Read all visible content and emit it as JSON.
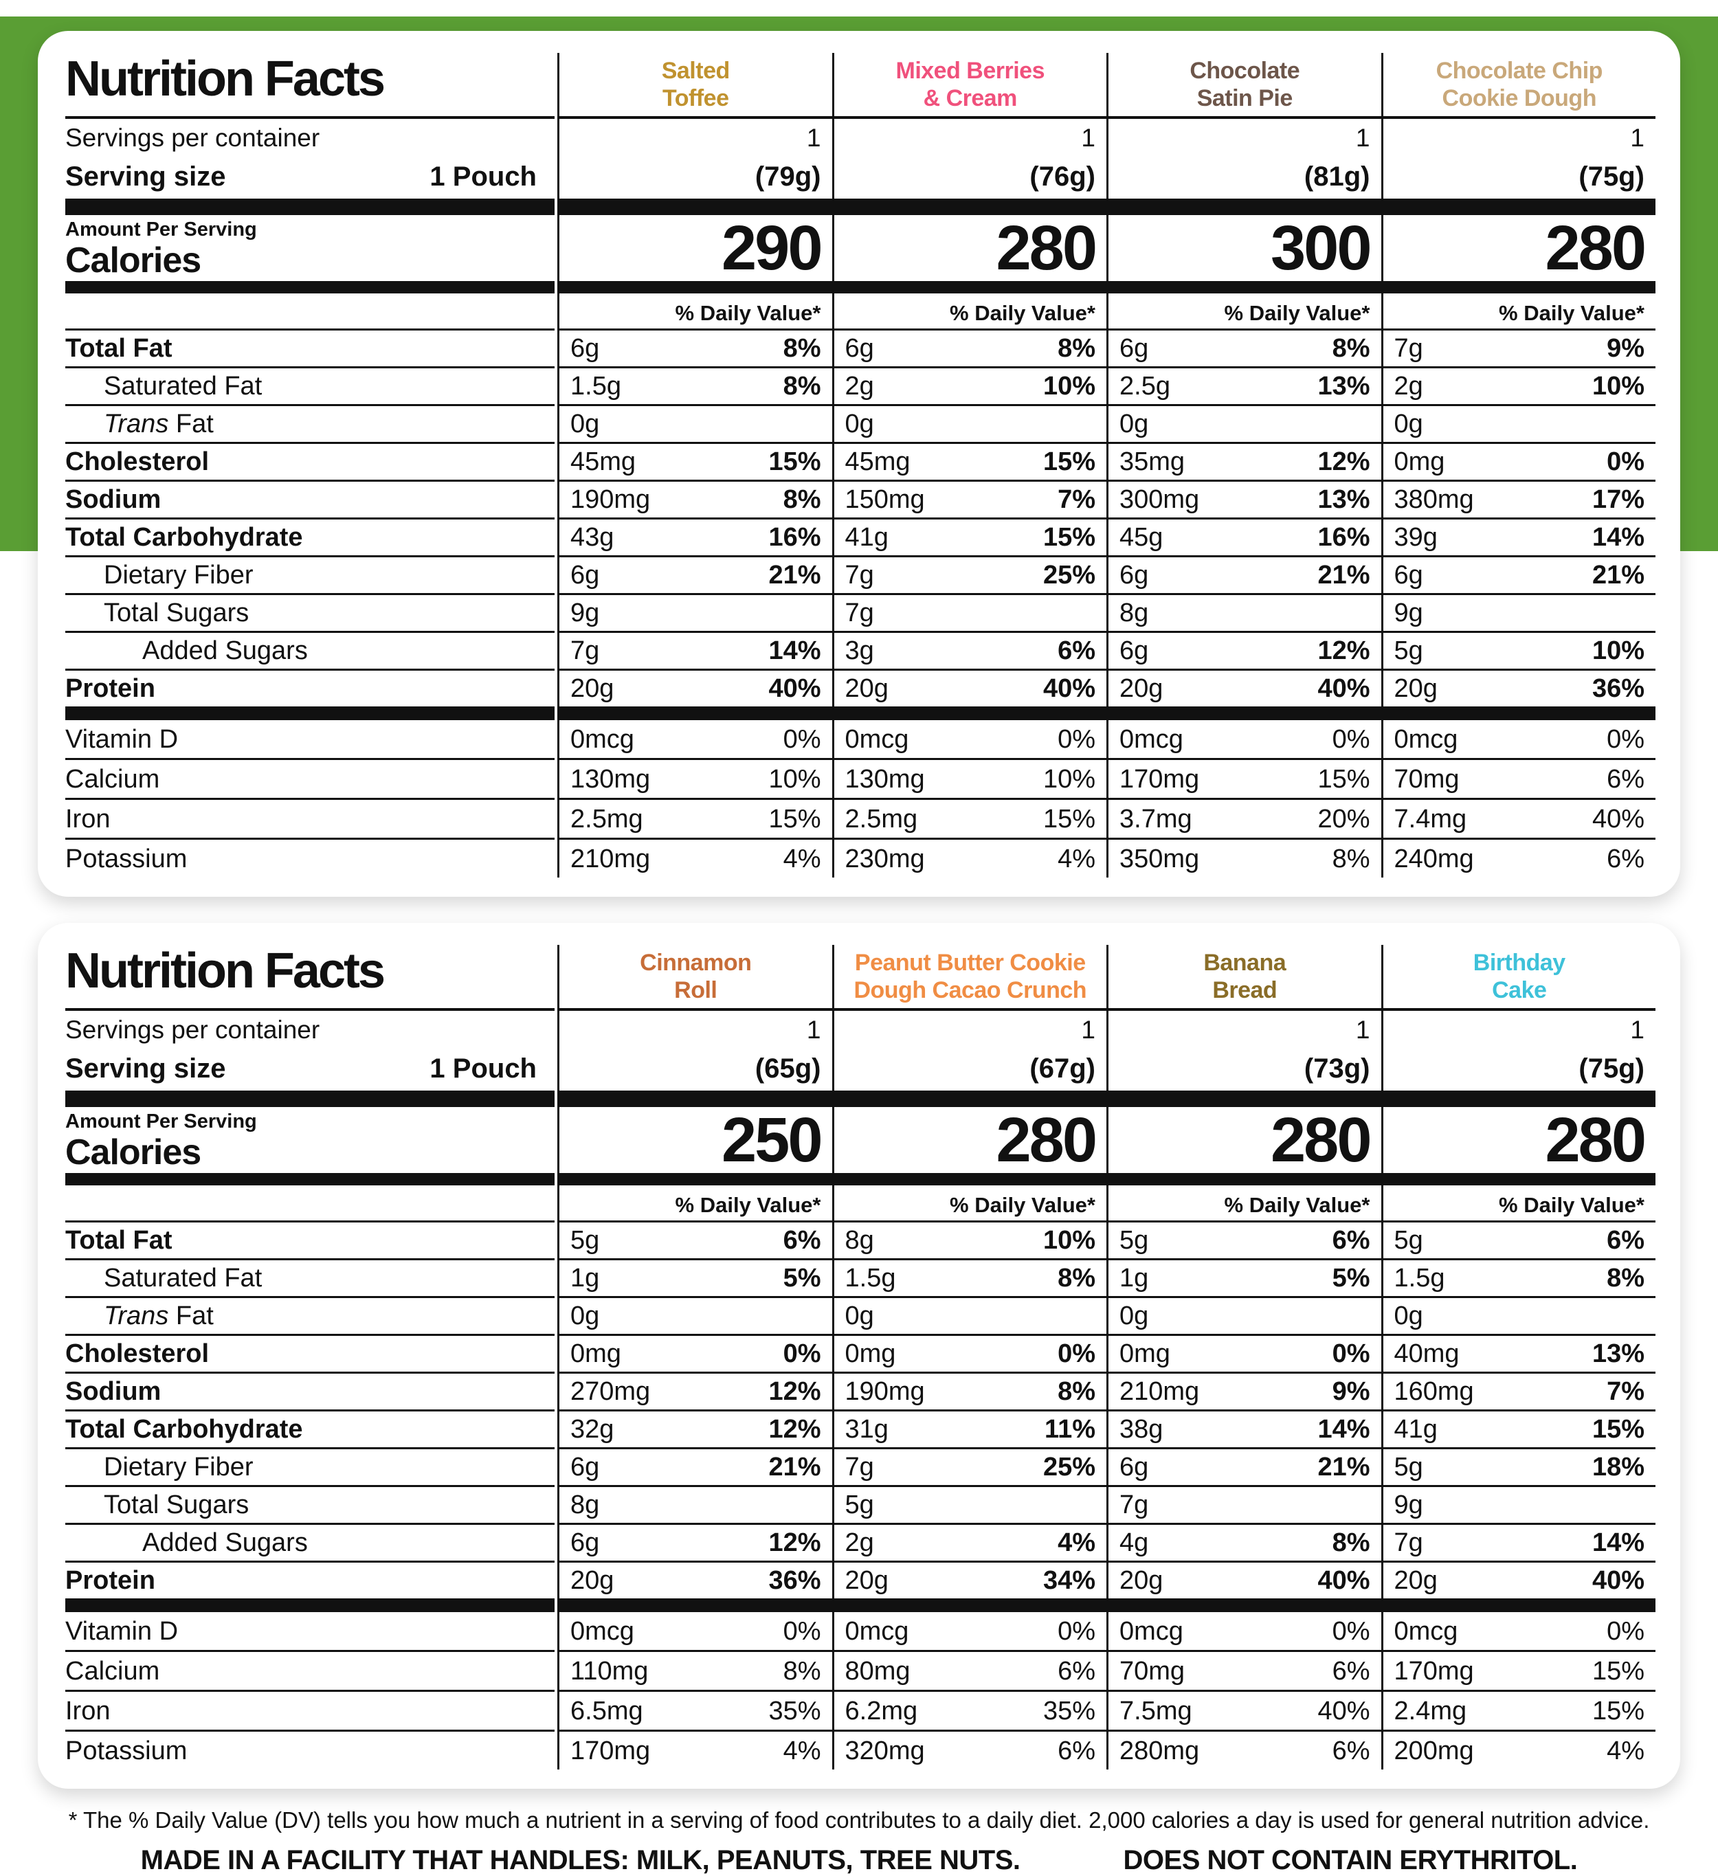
{
  "colors": {
    "background_green": "#5a9e34",
    "ink": "#111111"
  },
  "labels": {
    "title": "Nutrition Facts",
    "servings_per_container": "Servings per container",
    "serving_size": "Serving size",
    "serving_size_value": "1 Pouch",
    "amount_per_serving": "Amount Per Serving",
    "calories": "Calories",
    "daily_value_header": "% Daily Value*"
  },
  "nutrients": [
    {
      "label": "Total Fat",
      "bold": true,
      "indent": 0,
      "italic_first_word": false
    },
    {
      "label": "Saturated Fat",
      "bold": false,
      "indent": 1,
      "italic_first_word": false
    },
    {
      "label": "Trans Fat",
      "bold": false,
      "indent": 1,
      "italic_first_word": true
    },
    {
      "label": "Cholesterol",
      "bold": true,
      "indent": 0,
      "italic_first_word": false
    },
    {
      "label": "Sodium",
      "bold": true,
      "indent": 0,
      "italic_first_word": false
    },
    {
      "label": "Total Carbohydrate",
      "bold": true,
      "indent": 0,
      "italic_first_word": false
    },
    {
      "label": "Dietary Fiber",
      "bold": false,
      "indent": 1,
      "italic_first_word": false
    },
    {
      "label": "Total Sugars",
      "bold": false,
      "indent": 1,
      "italic_first_word": false
    },
    {
      "label": "Added Sugars",
      "bold": false,
      "indent": 2,
      "italic_first_word": false
    },
    {
      "label": "Protein",
      "bold": true,
      "indent": 0,
      "italic_first_word": false
    }
  ],
  "vitamins": [
    "Vitamin D",
    "Calcium",
    "Iron",
    "Potassium"
  ],
  "panels": [
    {
      "flavors": [
        {
          "name": "Salted\nToffee",
          "color": "#c0922f",
          "servings": "1",
          "weight": "(79g)",
          "calories": "290",
          "values": [
            [
              "6g",
              "8%"
            ],
            [
              "1.5g",
              "8%"
            ],
            [
              "0g",
              ""
            ],
            [
              "45mg",
              "15%"
            ],
            [
              "190mg",
              "8%"
            ],
            [
              "43g",
              "16%"
            ],
            [
              "6g",
              "21%"
            ],
            [
              "9g",
              ""
            ],
            [
              "7g",
              "14%"
            ],
            [
              "20g",
              "40%"
            ]
          ],
          "vitamins": [
            [
              "0mcg",
              "0%"
            ],
            [
              "130mg",
              "10%"
            ],
            [
              "2.5mg",
              "15%"
            ],
            [
              "210mg",
              "4%"
            ]
          ]
        },
        {
          "name": "Mixed Berries\n& Cream",
          "color": "#f0517c",
          "servings": "1",
          "weight": "(76g)",
          "calories": "280",
          "values": [
            [
              "6g",
              "8%"
            ],
            [
              "2g",
              "10%"
            ],
            [
              "0g",
              ""
            ],
            [
              "45mg",
              "15%"
            ],
            [
              "150mg",
              "7%"
            ],
            [
              "41g",
              "15%"
            ],
            [
              "7g",
              "25%"
            ],
            [
              "7g",
              ""
            ],
            [
              "3g",
              "6%"
            ],
            [
              "20g",
              "40%"
            ]
          ],
          "vitamins": [
            [
              "0mcg",
              "0%"
            ],
            [
              "130mg",
              "10%"
            ],
            [
              "2.5mg",
              "15%"
            ],
            [
              "230mg",
              "4%"
            ]
          ]
        },
        {
          "name": "Chocolate\nSatin Pie",
          "color": "#6d564a",
          "servings": "1",
          "weight": "(81g)",
          "calories": "300",
          "values": [
            [
              "6g",
              "8%"
            ],
            [
              "2.5g",
              "13%"
            ],
            [
              "0g",
              ""
            ],
            [
              "35mg",
              "12%"
            ],
            [
              "300mg",
              "13%"
            ],
            [
              "45g",
              "16%"
            ],
            [
              "6g",
              "21%"
            ],
            [
              "8g",
              ""
            ],
            [
              "6g",
              "12%"
            ],
            [
              "20g",
              "40%"
            ]
          ],
          "vitamins": [
            [
              "0mcg",
              "0%"
            ],
            [
              "170mg",
              "15%"
            ],
            [
              "3.7mg",
              "20%"
            ],
            [
              "350mg",
              "8%"
            ]
          ]
        },
        {
          "name": "Chocolate Chip\nCookie Dough",
          "color": "#c9a87a",
          "servings": "1",
          "weight": "(75g)",
          "calories": "280",
          "values": [
            [
              "7g",
              "9%"
            ],
            [
              "2g",
              "10%"
            ],
            [
              "0g",
              ""
            ],
            [
              "0mg",
              "0%"
            ],
            [
              "380mg",
              "17%"
            ],
            [
              "39g",
              "14%"
            ],
            [
              "6g",
              "21%"
            ],
            [
              "9g",
              ""
            ],
            [
              "5g",
              "10%"
            ],
            [
              "20g",
              "36%"
            ]
          ],
          "vitamins": [
            [
              "0mcg",
              "0%"
            ],
            [
              "70mg",
              "6%"
            ],
            [
              "7.4mg",
              "40%"
            ],
            [
              "240mg",
              "6%"
            ]
          ]
        }
      ]
    },
    {
      "flavors": [
        {
          "name": "Cinnamon\nRoll",
          "color": "#c76d38",
          "servings": "1",
          "weight": "(65g)",
          "calories": "250",
          "values": [
            [
              "5g",
              "6%"
            ],
            [
              "1g",
              "5%"
            ],
            [
              "0g",
              ""
            ],
            [
              "0mg",
              "0%"
            ],
            [
              "270mg",
              "12%"
            ],
            [
              "32g",
              "12%"
            ],
            [
              "6g",
              "21%"
            ],
            [
              "8g",
              ""
            ],
            [
              "6g",
              "12%"
            ],
            [
              "20g",
              "36%"
            ]
          ],
          "vitamins": [
            [
              "0mcg",
              "0%"
            ],
            [
              "110mg",
              "8%"
            ],
            [
              "6.5mg",
              "35%"
            ],
            [
              "170mg",
              "4%"
            ]
          ]
        },
        {
          "name": "Peanut Butter Cookie\nDough Cacao Crunch",
          "color": "#f08d44",
          "servings": "1",
          "weight": "(67g)",
          "calories": "280",
          "values": [
            [
              "8g",
              "10%"
            ],
            [
              "1.5g",
              "8%"
            ],
            [
              "0g",
              ""
            ],
            [
              "0mg",
              "0%"
            ],
            [
              "190mg",
              "8%"
            ],
            [
              "31g",
              "11%"
            ],
            [
              "7g",
              "25%"
            ],
            [
              "5g",
              ""
            ],
            [
              "2g",
              "4%"
            ],
            [
              "20g",
              "34%"
            ]
          ],
          "vitamins": [
            [
              "0mcg",
              "0%"
            ],
            [
              "80mg",
              "6%"
            ],
            [
              "6.2mg",
              "35%"
            ],
            [
              "320mg",
              "6%"
            ]
          ]
        },
        {
          "name": "Banana\nBread",
          "color": "#8a6d28",
          "servings": "1",
          "weight": "(73g)",
          "calories": "280",
          "values": [
            [
              "5g",
              "6%"
            ],
            [
              "1g",
              "5%"
            ],
            [
              "0g",
              ""
            ],
            [
              "0mg",
              "0%"
            ],
            [
              "210mg",
              "9%"
            ],
            [
              "38g",
              "14%"
            ],
            [
              "6g",
              "21%"
            ],
            [
              "7g",
              ""
            ],
            [
              "4g",
              "8%"
            ],
            [
              "20g",
              "40%"
            ]
          ],
          "vitamins": [
            [
              "0mcg",
              "0%"
            ],
            [
              "70mg",
              "6%"
            ],
            [
              "7.5mg",
              "40%"
            ],
            [
              "280mg",
              "6%"
            ]
          ]
        },
        {
          "name": "Birthday\nCake",
          "color": "#3ec1d9",
          "servings": "1",
          "weight": "(75g)",
          "calories": "280",
          "values": [
            [
              "5g",
              "6%"
            ],
            [
              "1.5g",
              "8%"
            ],
            [
              "0g",
              ""
            ],
            [
              "40mg",
              "13%"
            ],
            [
              "160mg",
              "7%"
            ],
            [
              "41g",
              "15%"
            ],
            [
              "5g",
              "18%"
            ],
            [
              "9g",
              ""
            ],
            [
              "7g",
              "14%"
            ],
            [
              "20g",
              "40%"
            ]
          ],
          "vitamins": [
            [
              "0mcg",
              "0%"
            ],
            [
              "170mg",
              "15%"
            ],
            [
              "2.4mg",
              "15%"
            ],
            [
              "200mg",
              "4%"
            ]
          ]
        }
      ]
    }
  ],
  "footer": {
    "daily_value_note": "* The % Daily Value (DV) tells you how much a nutrient in a serving of food contributes to a daily diet. 2,000 calories a day is used for general nutrition advice.",
    "facility_note": "MADE IN A FACILITY THAT HANDLES: MILK, PEANUTS, TREE NUTS.",
    "erythritol_note": "DOES NOT CONTAIN ERYTHRITOL."
  }
}
